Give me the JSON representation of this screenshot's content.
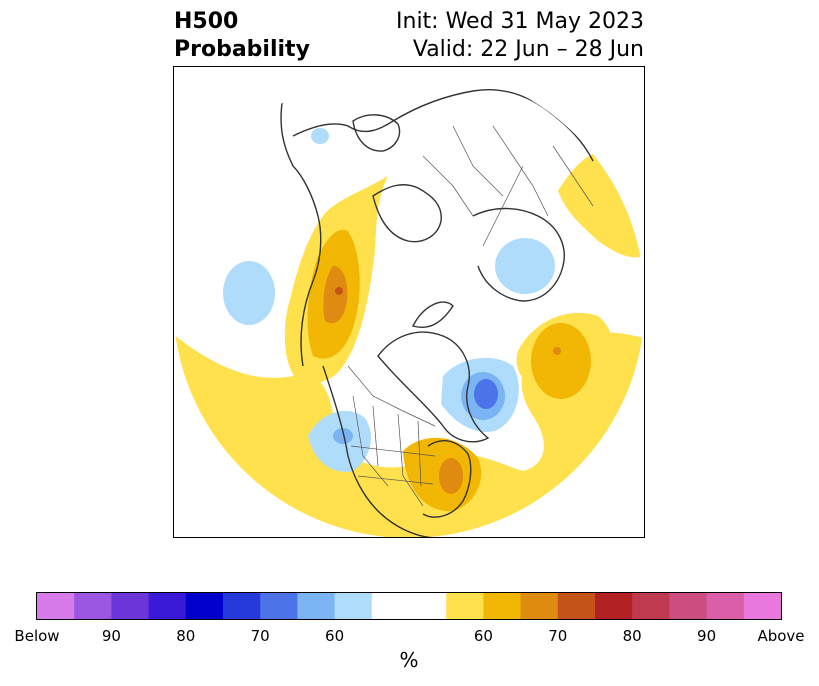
{
  "title": {
    "variable": "H500",
    "product": "Probability",
    "init": "Init: Wed 31 May 2023",
    "valid": "Valid: 22 Jun – 28 Jun"
  },
  "colorbar": {
    "unit": "%",
    "colors": [
      "#d67be9",
      "#9b55e0",
      "#6b35d9",
      "#3a1ad6",
      "#0000cc",
      "#2639db",
      "#4d73e8",
      "#7ab4f3",
      "#b0dcfb",
      "#ffffff",
      "#ffffff",
      "#ffe14d",
      "#f2b705",
      "#df8a10",
      "#c45319",
      "#b22222",
      "#c03a4f",
      "#cc4e81",
      "#da5fa8",
      "#e878dd"
    ],
    "ticks": [
      "Below",
      "90",
      "80",
      "70",
      "60",
      "60",
      "70",
      "80",
      "90",
      "Above"
    ]
  },
  "map": {
    "projection": "polar-stereographic",
    "colors": {
      "below_60": "#b0dcfb",
      "below_70": "#7ab4f3",
      "below_80": "#4d73e8",
      "above_60": "#ffe14d",
      "above_70": "#f2b705",
      "above_80": "#df8a10",
      "above_90": "#c45319"
    }
  }
}
